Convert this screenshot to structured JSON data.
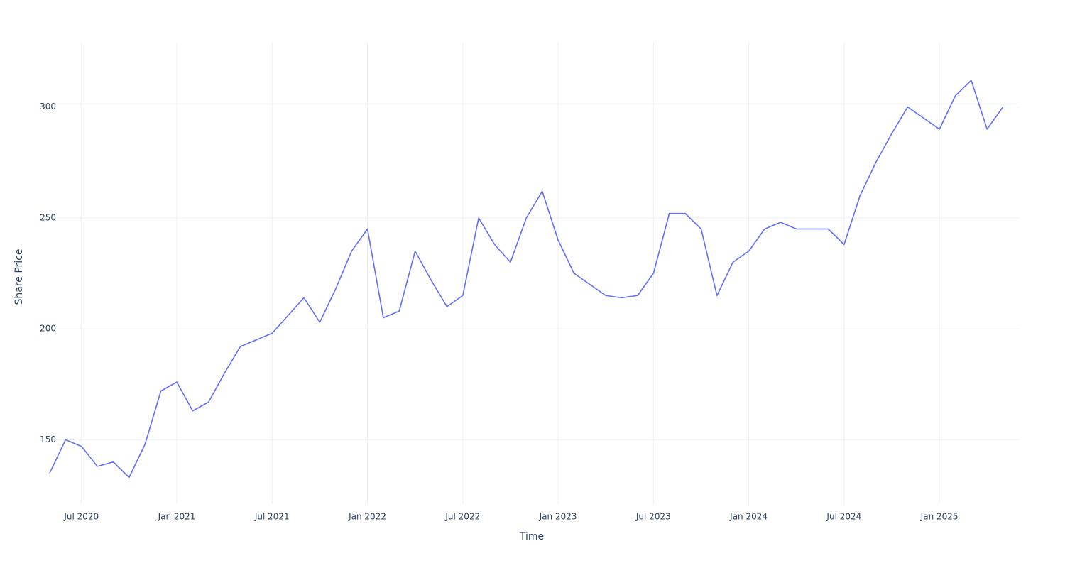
{
  "chart_data": {
    "type": "line",
    "x_label": "Time",
    "y_label": "Share Price",
    "x": [
      "2020-05",
      "2020-06",
      "2020-07",
      "2020-08",
      "2020-09",
      "2020-10",
      "2020-11",
      "2020-12",
      "2021-01",
      "2021-02",
      "2021-03",
      "2021-04",
      "2021-05",
      "2021-06",
      "2021-07",
      "2021-08",
      "2021-09",
      "2021-10",
      "2021-11",
      "2021-12",
      "2022-01",
      "2022-02",
      "2022-03",
      "2022-04",
      "2022-05",
      "2022-06",
      "2022-07",
      "2022-08",
      "2022-09",
      "2022-10",
      "2022-11",
      "2022-12",
      "2023-01",
      "2023-02",
      "2023-03",
      "2023-04",
      "2023-05",
      "2023-06",
      "2023-07",
      "2023-08",
      "2023-09",
      "2023-10",
      "2023-11",
      "2023-12",
      "2024-01",
      "2024-02",
      "2024-03",
      "2024-04",
      "2024-05",
      "2024-06",
      "2024-07",
      "2024-08",
      "2024-09",
      "2024-10",
      "2024-11",
      "2024-12",
      "2025-01",
      "2025-02",
      "2025-03",
      "2025-04",
      "2025-05"
    ],
    "series": [
      {
        "color": "#636efa",
        "values": [
          135,
          150,
          147,
          138,
          140,
          133,
          148,
          172,
          176,
          163,
          167,
          180,
          192,
          195,
          198,
          206,
          214,
          203,
          218,
          235,
          245,
          205,
          208,
          235,
          222,
          210,
          215,
          250,
          238,
          230,
          250,
          262,
          240,
          225,
          220,
          215,
          214,
          215,
          225,
          252,
          252,
          245,
          215,
          230,
          235,
          245,
          248,
          245,
          245,
          245,
          238,
          260,
          275,
          288,
          300,
          295,
          290,
          305,
          312,
          290,
          300
        ]
      }
    ],
    "xlim": [
      "2020-05",
      "2025-06"
    ],
    "xticks": [
      {
        "value": "2020-07",
        "label": "Jul 2020"
      },
      {
        "value": "2021-01",
        "label": "Jan 2021"
      },
      {
        "value": "2021-07",
        "label": "Jul 2021"
      },
      {
        "value": "2022-01",
        "label": "Jan 2022"
      },
      {
        "value": "2022-07",
        "label": "Jul 2022"
      },
      {
        "value": "2023-01",
        "label": "Jan 2023"
      },
      {
        "value": "2023-07",
        "label": "Jul 2023"
      },
      {
        "value": "2024-01",
        "label": "Jan 2024"
      },
      {
        "value": "2024-07",
        "label": "Jul 2024"
      },
      {
        "value": "2025-01",
        "label": "Jan 2025"
      }
    ],
    "ylim": [
      121,
      329
    ],
    "yticks": [
      150,
      200,
      250,
      300
    ],
    "grid": true
  }
}
